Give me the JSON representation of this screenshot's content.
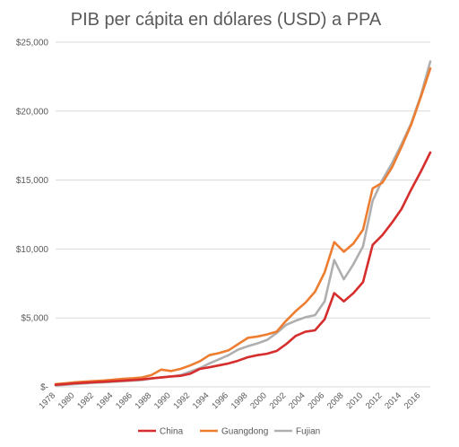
{
  "chart_data": {
    "type": "line",
    "title": "PIB per cápita en dólares (USD) a PPA",
    "xlabel": "",
    "ylabel": "",
    "ylim": [
      0,
      25000
    ],
    "y_ticks": [
      0,
      5000,
      10000,
      15000,
      20000,
      25000
    ],
    "y_tick_labels": [
      "$-",
      "$5,000",
      "$10,000",
      "$15,000",
      "$20,000",
      "$25,000"
    ],
    "grid": true,
    "legend_position": "bottom",
    "x": [
      1978,
      1979,
      1980,
      1981,
      1982,
      1983,
      1984,
      1985,
      1986,
      1987,
      1988,
      1989,
      1990,
      1991,
      1992,
      1993,
      1994,
      1995,
      1996,
      1997,
      1998,
      1999,
      2000,
      2001,
      2002,
      2003,
      2004,
      2005,
      2006,
      2007,
      2008,
      2009,
      2010,
      2011,
      2012,
      2013,
      2014,
      2015,
      2016,
      2017
    ],
    "x_tick_labels": [
      "1978",
      "1980",
      "1982",
      "1984",
      "1986",
      "1988",
      "1990",
      "1992",
      "1994",
      "1996",
      "1998",
      "2000",
      "2002",
      "2004",
      "2006",
      "2008",
      "2010",
      "2012",
      "2014",
      "2016"
    ],
    "series": [
      {
        "name": "China",
        "color": "#d62d2d",
        "values": [
          150,
          200,
          260,
          300,
          340,
          370,
          410,
          450,
          490,
          540,
          620,
          680,
          750,
          800,
          950,
          1300,
          1420,
          1560,
          1700,
          1900,
          2150,
          2300,
          2400,
          2600,
          3100,
          3700,
          4000,
          4100,
          4900,
          6800,
          6200,
          6800,
          7600,
          10300,
          11000,
          11900,
          12900,
          14300,
          15600,
          17000
        ]
      },
      {
        "name": "Guangdong",
        "color": "#ed7d31",
        "values": [
          200,
          260,
          330,
          380,
          420,
          460,
          520,
          580,
          620,
          680,
          860,
          1250,
          1150,
          1300,
          1550,
          1850,
          2300,
          2450,
          2650,
          3100,
          3550,
          3650,
          3800,
          4000,
          4800,
          5500,
          6100,
          6900,
          8300,
          10500,
          9800,
          10400,
          11400,
          14400,
          14800,
          15900,
          17400,
          19000,
          21000,
          23100
        ]
      },
      {
        "name": "Fujian",
        "color": "#afafaf",
        "values": [
          100,
          150,
          200,
          250,
          300,
          330,
          370,
          410,
          450,
          500,
          600,
          700,
          750,
          850,
          1100,
          1350,
          1700,
          2000,
          2300,
          2700,
          2950,
          3150,
          3400,
          3900,
          4500,
          4800,
          5050,
          5200,
          6200,
          9200,
          7800,
          8900,
          10200,
          13500,
          15000,
          16200,
          17600,
          19100,
          21100,
          23600
        ]
      }
    ]
  }
}
